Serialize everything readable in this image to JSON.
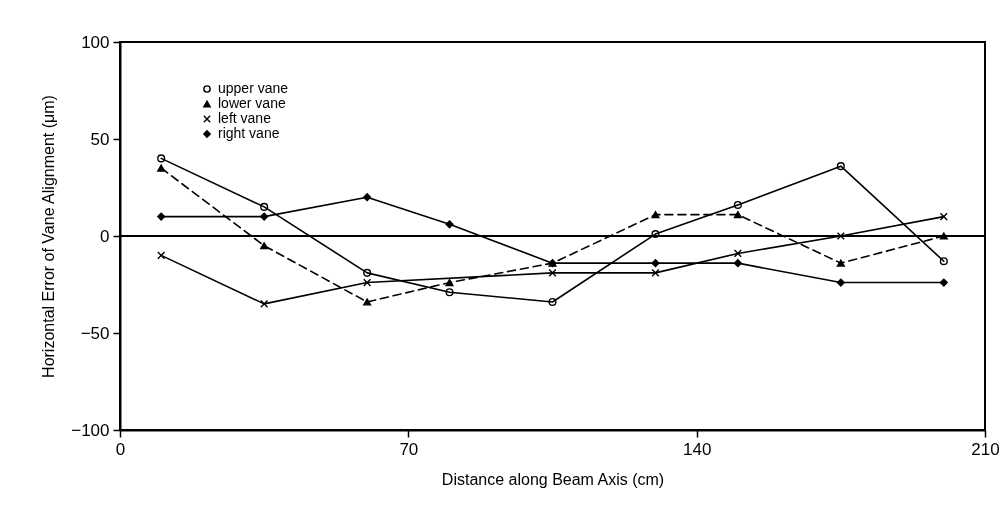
{
  "chart_data": {
    "type": "line",
    "xlabel": "Distance along Beam Axis (cm)",
    "ylabel": "Horizontal Error of Vane Alignment (μm)",
    "x": [
      10,
      35,
      60,
      80,
      105,
      130,
      150,
      175,
      200
    ],
    "series": [
      {
        "name": "upper vane",
        "color": "#000000",
        "marker": "circle",
        "line_style": "solid",
        "values": [
          40,
          15,
          -19,
          -29,
          -34,
          1,
          16,
          36,
          -13
        ]
      },
      {
        "name": "lower vane",
        "color": "#000000",
        "marker": "triangle",
        "line_style": "dashed",
        "values": [
          35,
          -5,
          -34,
          -24,
          -14,
          11,
          11,
          -14,
          0
        ]
      },
      {
        "name": "left vane",
        "color": "#000000",
        "marker": "cross",
        "line_style": "solid",
        "x": [
          10,
          35,
          60,
          105,
          130,
          150,
          175,
          200
        ],
        "values": [
          -10,
          -35,
          -24,
          -19,
          -19,
          -9,
          0,
          10
        ]
      },
      {
        "name": "right vane",
        "color": "#000000",
        "marker": "diamond",
        "line_style": "solid",
        "values": [
          10,
          10,
          20,
          6,
          -14,
          -14,
          -14,
          -24,
          -24
        ]
      }
    ],
    "xlim": [
      0,
      210
    ],
    "xticks": [
      0,
      70,
      140,
      210
    ],
    "ylim": [
      -100,
      100
    ],
    "yticks": [
      -100,
      -50,
      0,
      50,
      100
    ],
    "ref_lines": [
      {
        "axis": "y",
        "value": 0,
        "color": "#000000",
        "line_style": "solid"
      }
    ],
    "grid": false,
    "legend": "top left"
  }
}
